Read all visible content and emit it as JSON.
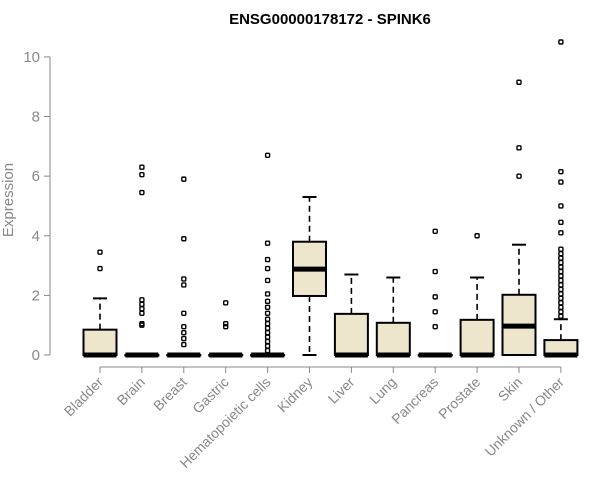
{
  "chart_data": {
    "type": "boxplot",
    "title": "ENSG00000178172 - SPINK6",
    "ylabel": "Expression",
    "xlabel": "",
    "ylim": [
      0,
      10.5
    ],
    "yticks": [
      0,
      2,
      4,
      6,
      8,
      10
    ],
    "grid": false,
    "colors": {
      "box_fill": "#ede6cc",
      "box_stroke": "#000000",
      "axis": "#888888"
    },
    "categories": [
      "Bladder",
      "Brain",
      "Breast",
      "Gastric",
      "Hematopoietic cells",
      "Kidney",
      "Liver",
      "Lung",
      "Pancreas",
      "Prostate",
      "Skin",
      "Unknown / Other"
    ],
    "boxes": [
      {
        "q1": 0,
        "median": 0,
        "q3": 0.85,
        "whisker_low": 0,
        "whisker_high": 1.9,
        "outliers": [
          2.9,
          3.45
        ]
      },
      {
        "q1": 0,
        "median": 0,
        "q3": 0,
        "whisker_low": 0,
        "whisker_high": 0,
        "outliers": [
          1.0,
          1.05,
          1.4,
          1.55,
          1.7,
          1.85,
          5.45,
          6.05,
          6.3
        ]
      },
      {
        "q1": 0,
        "median": 0,
        "q3": 0,
        "whisker_low": 0,
        "whisker_high": 0,
        "outliers": [
          0.35,
          0.55,
          0.75,
          0.95,
          1.4,
          2.35,
          2.55,
          3.9,
          5.9
        ]
      },
      {
        "q1": 0,
        "median": 0,
        "q3": 0,
        "whisker_low": 0,
        "whisker_high": 0,
        "outliers": [
          0.95,
          1.05,
          1.75
        ]
      },
      {
        "q1": 0,
        "median": 0,
        "q3": 0,
        "whisker_low": 0,
        "whisker_high": 0,
        "outliers": [
          0.15,
          0.3,
          0.45,
          0.6,
          0.75,
          0.9,
          1.05,
          1.2,
          1.4,
          1.6,
          1.8,
          2.05,
          2.5,
          2.9,
          3.2,
          3.75,
          6.7
        ]
      },
      {
        "q1": 1.98,
        "median": 2.88,
        "q3": 3.8,
        "whisker_low": 0,
        "whisker_high": 5.3,
        "outliers": []
      },
      {
        "q1": 0,
        "median": 0,
        "q3": 1.38,
        "whisker_low": 0,
        "whisker_high": 2.7,
        "outliers": []
      },
      {
        "q1": 0,
        "median": 0,
        "q3": 1.08,
        "whisker_low": 0,
        "whisker_high": 2.6,
        "outliers": []
      },
      {
        "q1": 0,
        "median": 0,
        "q3": 0,
        "whisker_low": 0,
        "whisker_high": 0,
        "outliers": [
          0.95,
          1.45,
          1.95,
          2.8,
          4.15
        ]
      },
      {
        "q1": 0,
        "median": 0,
        "q3": 1.18,
        "whisker_low": 0,
        "whisker_high": 2.6,
        "outliers": [
          4.0
        ]
      },
      {
        "q1": 0,
        "median": 0.97,
        "q3": 2.02,
        "whisker_low": 0,
        "whisker_high": 3.7,
        "outliers": [
          6.0,
          6.95,
          9.15
        ]
      },
      {
        "q1": 0,
        "median": 0,
        "q3": 0.5,
        "whisker_low": 0,
        "whisker_high": 1.2,
        "outliers": [
          1.3,
          1.45,
          1.6,
          1.75,
          1.9,
          2.05,
          2.2,
          2.35,
          2.5,
          2.65,
          2.8,
          2.95,
          3.1,
          3.25,
          3.4,
          3.55,
          4.1,
          4.45,
          5.0,
          5.8,
          6.15,
          10.5
        ]
      }
    ]
  }
}
